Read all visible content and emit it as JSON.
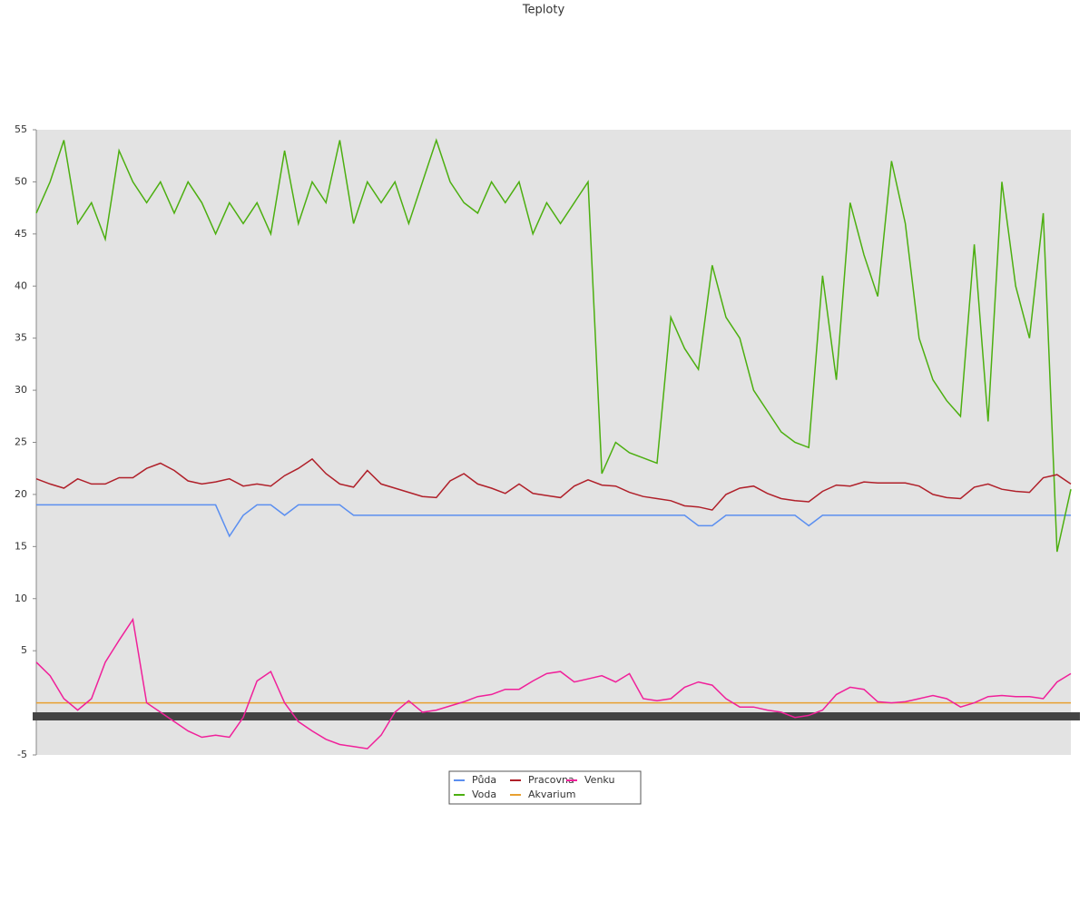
{
  "chart_data": {
    "type": "line",
    "title": "Teploty",
    "categories": [
      null,
      null,
      null,
      null,
      null,
      null,
      null,
      null,
      null,
      null,
      null,
      null,
      null,
      null,
      null,
      null,
      null,
      null,
      null,
      null,
      null,
      null,
      null,
      null,
      null,
      null,
      null,
      null,
      null,
      null,
      null,
      null,
      null,
      null,
      null,
      null,
      null,
      null,
      null,
      null,
      null,
      null,
      null,
      null,
      null,
      null,
      null,
      null,
      null,
      null,
      null,
      null,
      null,
      null,
      null,
      null,
      null,
      null,
      null,
      null,
      null,
      null,
      null,
      null,
      null,
      null,
      null,
      null,
      null,
      null,
      null,
      null,
      null,
      null,
      null,
      null
    ],
    "ylim": [
      -5,
      55
    ],
    "yticks": [
      -5,
      5,
      10,
      15,
      20,
      25,
      30,
      35,
      40,
      45,
      50,
      55
    ],
    "series": [
      {
        "name": "Půda",
        "color": "#5b8ff0",
        "values": [
          19,
          19,
          19,
          19,
          19,
          19,
          19,
          19,
          19,
          19,
          19,
          19,
          19,
          19,
          16,
          18,
          19,
          19,
          18,
          19,
          19,
          19,
          19,
          18,
          18,
          18,
          18,
          18,
          18,
          18,
          18,
          18,
          18,
          18,
          18,
          18,
          18,
          18,
          18,
          18,
          18,
          18,
          18,
          18,
          18,
          18,
          18,
          18,
          17,
          17,
          18,
          18,
          18,
          18,
          18,
          18,
          17,
          18,
          18,
          18,
          18,
          18,
          18,
          18,
          18,
          18,
          18,
          18,
          18,
          18,
          18,
          18,
          18,
          18,
          18,
          18
        ]
      },
      {
        "name": "Voda",
        "color": "#4caf10",
        "values": [
          47,
          50,
          54,
          46,
          48,
          44.5,
          53,
          50,
          48,
          50,
          47,
          50,
          48,
          45,
          48,
          46,
          48,
          45,
          53,
          46,
          50,
          48,
          54,
          46,
          50,
          48,
          50,
          46,
          50,
          54,
          50,
          48,
          47,
          50,
          48,
          50,
          45,
          48,
          46,
          48,
          50,
          22,
          25,
          24,
          23.5,
          23,
          37,
          34,
          32,
          42,
          37,
          35,
          30,
          28,
          26,
          25,
          24.5,
          41,
          31,
          48,
          43,
          39,
          52,
          46,
          35,
          31,
          29,
          27.5,
          44,
          27,
          50,
          40,
          35,
          47,
          14.5,
          20.5
        ]
      },
      {
        "name": "Pracovna",
        "color": "#b0202a",
        "values": [
          21.5,
          21,
          20.6,
          21.5,
          21,
          21,
          21.6,
          21.6,
          22.5,
          23,
          22.3,
          21.3,
          21,
          21.2,
          21.5,
          20.8,
          21,
          20.8,
          21.8,
          22.5,
          23.4,
          22,
          21,
          20.7,
          22.3,
          21,
          20.6,
          20.2,
          19.8,
          19.7,
          21.3,
          22,
          21,
          20.6,
          20.1,
          21,
          20.1,
          19.9,
          19.7,
          20.8,
          21.4,
          20.9,
          20.8,
          20.2,
          19.8,
          19.6,
          19.4,
          18.9,
          18.8,
          18.5,
          20,
          20.6,
          20.8,
          20.1,
          19.6,
          19.4,
          19.3,
          20.3,
          20.9,
          20.8,
          21.2,
          21.1,
          21.1,
          21.1,
          20.8,
          20,
          19.7,
          19.6,
          20.7,
          21,
          20.5,
          20.3,
          20.2,
          21.6,
          21.9,
          21
        ]
      },
      {
        "name": "Akvarium",
        "color": "#e8a030",
        "values": [
          0,
          0,
          0,
          0,
          0,
          0,
          0,
          0,
          0,
          0,
          0,
          0,
          0,
          0,
          0,
          0,
          0,
          0,
          0,
          0,
          0,
          0,
          0,
          0,
          0,
          0,
          0,
          0,
          0,
          0,
          0,
          0,
          0,
          0,
          0,
          0,
          0,
          0,
          0,
          0,
          0,
          0,
          0,
          0,
          0,
          0,
          0,
          0,
          0,
          0,
          0,
          0,
          0,
          0,
          0,
          0,
          0,
          0,
          0,
          0,
          0,
          0,
          0,
          0,
          0,
          0,
          0,
          0,
          0,
          0,
          0,
          0,
          0,
          0,
          0,
          0
        ]
      },
      {
        "name": "Venku",
        "color": "#f0209a",
        "values": [
          3.9,
          2.6,
          0.4,
          -0.7,
          0.4,
          3.9,
          6,
          8,
          0,
          -0.9,
          -1.8,
          -2.7,
          -3.3,
          -3.1,
          -3.3,
          -1.4,
          2.1,
          3,
          0,
          -1.8,
          -2.7,
          -3.5,
          -4,
          -4.2,
          -4.4,
          -3.1,
          -0.9,
          0.2,
          -0.9,
          -0.7,
          -0.3,
          0.1,
          0.6,
          0.8,
          1.3,
          1.3,
          2.1,
          2.8,
          3,
          2,
          2.3,
          2.6,
          2,
          2.8,
          0.4,
          0.2,
          0.4,
          1.5,
          2,
          1.7,
          0.4,
          -0.4,
          -0.4,
          -0.7,
          -0.9,
          -1.4,
          -1.2,
          -0.7,
          0.8,
          1.5,
          1.3,
          0.1,
          0,
          0.1,
          0.4,
          0.7,
          0.4,
          -0.4,
          0,
          0.6,
          0.7,
          0.6,
          0.6,
          0.4,
          2,
          2.8
        ]
      }
    ]
  }
}
